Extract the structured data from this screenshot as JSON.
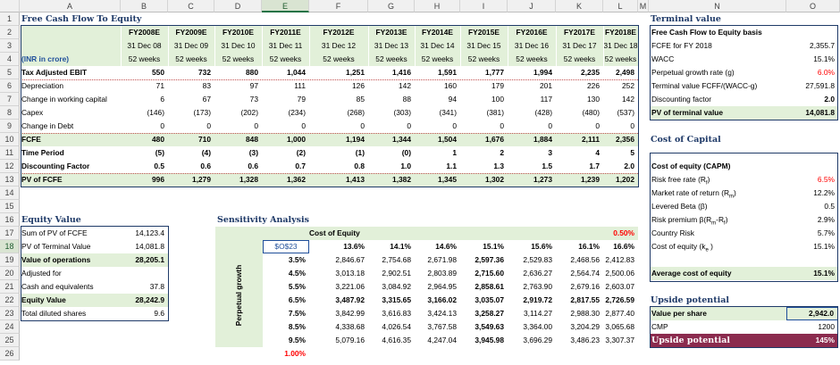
{
  "col_headers": [
    "A",
    "B",
    "C",
    "D",
    "E",
    "F",
    "G",
    "H",
    "I",
    "J",
    "K",
    "L",
    "M",
    "N",
    "O"
  ],
  "selected_col": "E",
  "row_numbers": [
    "1",
    "2",
    "3",
    "4",
    "5",
    "6",
    "7",
    "8",
    "9",
    "10",
    "11",
    "12",
    "13",
    "14",
    "15",
    "16",
    "17",
    "18",
    "19",
    "20",
    "21",
    "22",
    "23",
    "24",
    "25",
    "26"
  ],
  "selected_row": "18",
  "fcfe": {
    "title": "Free Cash Flow To Equity",
    "unit_label": "(INR in crore)",
    "years": [
      "FY2008E",
      "FY2009E",
      "FY2010E",
      "FY2011E",
      "FY2012E",
      "FY2013E",
      "FY2014E",
      "FY2015E",
      "FY2016E",
      "FY2017E",
      "FY2018E"
    ],
    "dates": [
      "31 Dec 08",
      "31 Dec 09",
      "31 Dec 10",
      "31 Dec 11",
      "31 Dec 12",
      "31 Dec 13",
      "31 Dec 14",
      "31 Dec 15",
      "31 Dec 16",
      "31 Dec 17",
      "31 Dec 18"
    ],
    "weeks": [
      "52 weeks",
      "52 weeks",
      "52 weeks",
      "52 weeks",
      "52 weeks",
      "52 weeks",
      "52 weeks",
      "52 weeks",
      "52 weeks",
      "52 weeks",
      "52 weeks"
    ],
    "rows": [
      {
        "label": "Tax Adjusted EBIT",
        "bold": true,
        "values": [
          "550",
          "732",
          "880",
          "1,044",
          "1,251",
          "1,416",
          "1,591",
          "1,777",
          "1,994",
          "2,235",
          "2,498"
        ]
      },
      {
        "label": "Depreciation",
        "bold": false,
        "values": [
          "71",
          "83",
          "97",
          "111",
          "126",
          "142",
          "160",
          "179",
          "201",
          "226",
          "252"
        ]
      },
      {
        "label": "Change in working capital",
        "bold": false,
        "values": [
          "6",
          "67",
          "73",
          "79",
          "85",
          "88",
          "94",
          "100",
          "117",
          "130",
          "142"
        ]
      },
      {
        "label": "Capex",
        "bold": false,
        "values": [
          "(146)",
          "(173)",
          "(202)",
          "(234)",
          "(268)",
          "(303)",
          "(341)",
          "(381)",
          "(428)",
          "(480)",
          "(537)"
        ]
      },
      {
        "label": "Change in Debt",
        "bold": false,
        "values": [
          "0",
          "0",
          "0",
          "0",
          "0",
          "0",
          "0",
          "0",
          "0",
          "0",
          "0"
        ]
      },
      {
        "label": "FCFE",
        "bold": true,
        "values": [
          "480",
          "710",
          "848",
          "1,000",
          "1,194",
          "1,344",
          "1,504",
          "1,676",
          "1,884",
          "2,111",
          "2,356"
        ]
      },
      {
        "label": "Time Period",
        "bold": true,
        "values": [
          "(5)",
          "(4)",
          "(3)",
          "(2)",
          "(1)",
          "(0)",
          "1",
          "2",
          "3",
          "4",
          "5"
        ]
      },
      {
        "label": "Discounting Factor",
        "bold": true,
        "values": [
          "0.5",
          "0.6",
          "0.6",
          "0.7",
          "0.8",
          "1.0",
          "1.1",
          "1.3",
          "1.5",
          "1.7",
          "2.0"
        ]
      },
      {
        "label": " PV of FCFE",
        "bold": true,
        "values": [
          "996",
          "1,279",
          "1,328",
          "1,362",
          "1,413",
          "1,382",
          "1,345",
          "1,302",
          "1,273",
          "1,239",
          "1,202"
        ]
      }
    ]
  },
  "terminal": {
    "title": "Terminal value",
    "header": "Free Cash Flow to Equity basis",
    "rows": [
      {
        "label": "FCFE for FY 2018",
        "value": "2,355.7"
      },
      {
        "label": "WACC",
        "value": "15.1%"
      },
      {
        "label": "Perpetual growth rate (g)",
        "value": "6.0%"
      },
      {
        "label": "Terminal value FCFF/(WACC-g)",
        "value": "27,591.8"
      },
      {
        "label": "Discounting factor",
        "value": "2.0"
      },
      {
        "label": "PV of terminal value",
        "value": "14,081.8"
      }
    ]
  },
  "coc": {
    "title": "Cost of Capital",
    "header": "Cost of equity (CAPM)",
    "rows": [
      {
        "label": "Risk free rate (R",
        "sub": "f",
        "post": ")",
        "value": "6.5%"
      },
      {
        "label": "Market rate of return (R",
        "sub": "m",
        "post": ")",
        "value": "12.2%"
      },
      {
        "label": "Levered Beta (β)",
        "sub": "",
        "post": "",
        "value": "0.5"
      },
      {
        "label": "Risk premium  β(R",
        "sub": "m",
        "post": "-R",
        "sub2": "f",
        "post2": ")",
        "value": "2.9%"
      },
      {
        "label": "Country Risk",
        "sub": "",
        "post": "",
        "value": "5.7%"
      },
      {
        "label": "Cost of equity (k",
        "sub": "e",
        "post": " )",
        "value": "15.1%"
      }
    ],
    "avg_label": "Average cost of equity",
    "avg_value": "15.1%"
  },
  "equity": {
    "title": "Equity Value",
    "rows": [
      {
        "label": "Sum of PV of FCFE",
        "value": "14,123.4",
        "bold": false,
        "green": false
      },
      {
        "label": "PV of Terminal Value",
        "value": "14,081.8",
        "bold": false,
        "green": false
      },
      {
        "label": "Value of operations",
        "value": "28,205.1",
        "bold": true,
        "green": true
      },
      {
        "label": "Adjusted for",
        "value": "",
        "bold": false,
        "green": false
      },
      {
        "label": "Cash and equivalents",
        "value": "37.8",
        "bold": false,
        "green": false
      },
      {
        "label": "Equity Value",
        "value": "28,242.9",
        "bold": true,
        "green": true
      },
      {
        "label": "Total diluted shares",
        "value": "9.6",
        "bold": false,
        "green": false
      }
    ]
  },
  "sensitivity": {
    "title": "Sensitivity Analysis",
    "coe_label": "Cost of Equity",
    "coe_step": "0.50%",
    "corner_ref": "$O$23",
    "growth_label": "Perpetual growth",
    "growth_step": "1.00%",
    "col_headers": [
      "13.6%",
      "14.1%",
      "14.6%",
      "15.1%",
      "15.6%",
      "16.1%",
      "16.6%"
    ],
    "rows": [
      {
        "g": "3.5%",
        "values": [
          "2,846.67",
          "2,754.68",
          "2,671.98",
          "2,597.36",
          "2,529.83",
          "2,468.56",
          "2,412.83"
        ]
      },
      {
        "g": "4.5%",
        "values": [
          "3,013.18",
          "2,902.51",
          "2,803.89",
          "2,715.60",
          "2,636.27",
          "2,564.74",
          "2,500.06"
        ]
      },
      {
        "g": "5.5%",
        "values": [
          "3,221.06",
          "3,084.92",
          "2,964.95",
          "2,858.61",
          "2,763.90",
          "2,679.16",
          "2,603.07"
        ]
      },
      {
        "g": "6.5%",
        "values": [
          "3,487.92",
          "3,315.65",
          "3,166.02",
          "3,035.07",
          "2,919.72",
          "2,817.55",
          "2,726.59"
        ]
      },
      {
        "g": "7.5%",
        "values": [
          "3,842.99",
          "3,616.83",
          "3,424.13",
          "3,258.27",
          "3,114.27",
          "2,988.30",
          "2,877.40"
        ]
      },
      {
        "g": "8.5%",
        "values": [
          "4,338.68",
          "4,026.54",
          "3,767.58",
          "3,549.63",
          "3,364.00",
          "3,204.29",
          "3,065.68"
        ]
      },
      {
        "g": "9.5%",
        "values": [
          "5,079.16",
          "4,616.35",
          "4,247.04",
          "3,945.98",
          "3,696.29",
          "3,486.23",
          "3,307.37"
        ]
      }
    ]
  },
  "upside": {
    "title": "Upside potential",
    "rows": [
      {
        "label": "Value per share",
        "value": "2,942.0"
      },
      {
        "label": "CMP",
        "value": "1200"
      },
      {
        "label": "Upside potential",
        "value": "145%"
      }
    ]
  }
}
